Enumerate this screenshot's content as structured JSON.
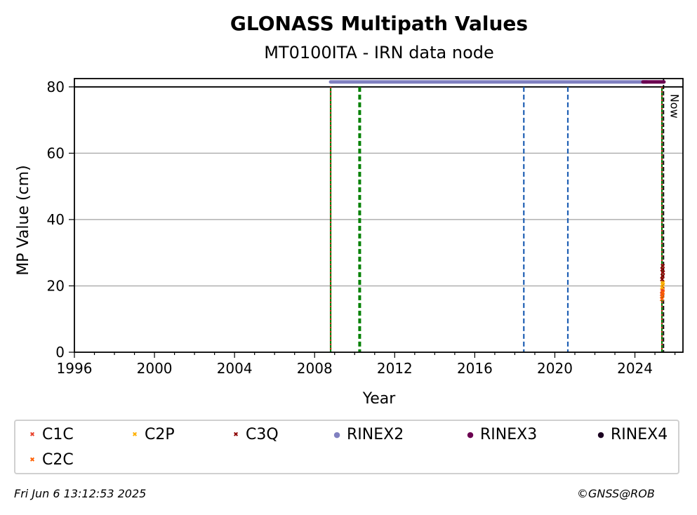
{
  "chart_data": {
    "type": "scatter",
    "title": "GLONASS Multipath Values",
    "subtitle": "MT0100ITA - IRN data node",
    "xlabel": "Year",
    "ylabel": "MP Value (cm)",
    "xlim": [
      1996,
      2026.4
    ],
    "ylim": [
      0,
      82.5
    ],
    "x_ticks": [
      1996,
      2000,
      2004,
      2008,
      2012,
      2016,
      2020,
      2024
    ],
    "y_ticks": [
      0,
      20,
      40,
      60,
      80
    ],
    "grid": "y",
    "reference_line_y": 80,
    "now_label": "Now",
    "now_x": 2025.43,
    "event_lines": [
      {
        "x": 2008.8,
        "color": "#008000",
        "style": "solid"
      },
      {
        "x": 2008.8,
        "color": "#d62728",
        "style": "dotted"
      },
      {
        "x": 2010.25,
        "color": "#008000",
        "style": "dashed"
      },
      {
        "x": 2018.45,
        "color": "#1f5fb4",
        "style": "dashed"
      },
      {
        "x": 2020.65,
        "color": "#1f5fb4",
        "style": "dashed"
      },
      {
        "x": 2025.35,
        "color": "#008000",
        "style": "solid"
      },
      {
        "x": 2025.35,
        "color": "#d62728",
        "style": "dotted"
      }
    ],
    "format_bars": [
      {
        "name": "RINEX2",
        "color": "#8080c0",
        "x_start": 2008.8,
        "x_end": 2024.6,
        "y": 81.5
      },
      {
        "name": "RINEX3",
        "color": "#6b0050",
        "x_start": 2024.4,
        "x_end": 2025.45,
        "y": 81.5
      }
    ],
    "series": [
      {
        "name": "C1C",
        "color": "#e8402a",
        "marker": "x",
        "x": [
          2025.35,
          2025.37,
          2025.39
        ],
        "y": [
          17.5,
          18.5,
          19.0
        ]
      },
      {
        "name": "C2P",
        "color": "#ffb000",
        "marker": "x",
        "x": [
          2025.36,
          2025.38,
          2025.4
        ],
        "y": [
          19.5,
          20.5,
          21.0
        ]
      },
      {
        "name": "C3Q",
        "color": "#8b0000",
        "marker": "x",
        "x": [
          2025.36,
          2025.38,
          2025.4,
          2025.37,
          2025.39
        ],
        "y": [
          22.0,
          23.0,
          24.0,
          25.0,
          26.0
        ]
      },
      {
        "name": "C2C",
        "color": "#ff6000",
        "marker": "x",
        "x": [
          2025.35,
          2025.37,
          2025.39
        ],
        "y": [
          16.0,
          17.0,
          18.0
        ]
      }
    ],
    "legend": [
      {
        "label": "C1C",
        "color": "#e8402a",
        "marker": "x"
      },
      {
        "label": "C2P",
        "color": "#ffb000",
        "marker": "x"
      },
      {
        "label": "C3Q",
        "color": "#8b0000",
        "marker": "x"
      },
      {
        "label": "RINEX2",
        "color": "#8080c0",
        "marker": "o"
      },
      {
        "label": "RINEX3",
        "color": "#6b0050",
        "marker": "o"
      },
      {
        "label": "RINEX4",
        "color": "#1a0020",
        "marker": "o"
      },
      {
        "label": "C2C",
        "color": "#ff6000",
        "marker": "x"
      }
    ],
    "legend_placement": "bottom"
  },
  "footer": {
    "timestamp": "Fri Jun  6 13:12:53 2025",
    "credit": "©GNSS@ROB"
  }
}
